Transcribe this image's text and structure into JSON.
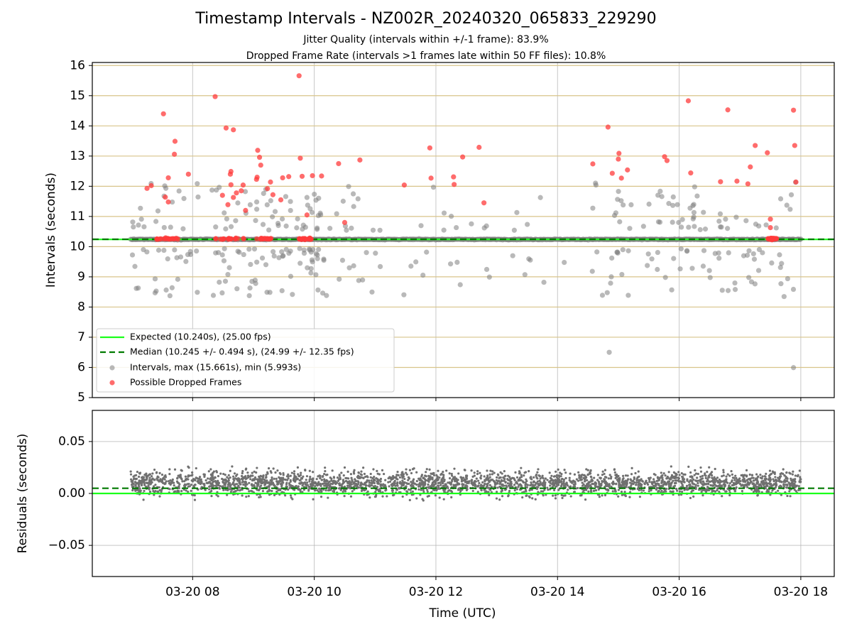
{
  "chart_data": [
    {
      "type": "scatter",
      "title": "Timestamp Intervals - NZ002R_20240320_065833_229290",
      "subtitle_lines": [
        "Jitter Quality (intervals within +/-1 frame): 83.9%",
        "Dropped Frame Rate (intervals >1 frames late within 50 FF files): 10.8%"
      ],
      "xlabel": "",
      "ylabel": "Intervals (seconds)",
      "x_range_hours": [
        6.35,
        18.55
      ],
      "ylim": [
        5,
        16.1
      ],
      "y_ticks": [
        5,
        6,
        7,
        8,
        9,
        10,
        11,
        12,
        13,
        14,
        15,
        16
      ],
      "x_ticks": [
        "03-20 08",
        "03-20 10",
        "03-20 12",
        "03-20 14",
        "03-20 16",
        "03-20 18"
      ],
      "x_tick_hours": [
        8,
        10,
        12,
        14,
        16,
        18
      ],
      "x_start_hour": 6.98,
      "x_end_hour": 18.0,
      "grid": "vertical gridlines at x ticks; horizontal tan lines at integer seconds",
      "legend_placement": "lower-left",
      "series": [
        {
          "name": "Expected (10.240s), (25.00 fps)",
          "kind": "hline",
          "value": 10.24,
          "color": "#1aff1a"
        },
        {
          "name": "Median (10.245 +/- 0.494 s), (24.99 +/- 12.35 fps)",
          "kind": "hline-dashed",
          "value": 10.245,
          "color": "#007a00"
        },
        {
          "name": "Intervals, max (15.661s), min (5.993s)",
          "kind": "scatter",
          "color": "#808080",
          "max": 15.661,
          "min": 5.993,
          "base": 10.24
        },
        {
          "name": "Possible Dropped Frames",
          "kind": "scatter",
          "color": "#ff3b3b",
          "points": [
            [
              7.25,
              11.93
            ],
            [
              7.32,
              12.02
            ],
            [
              7.52,
              14.4
            ],
            [
              7.55,
              11.64
            ],
            [
              7.6,
              11.48
            ],
            [
              7.6,
              12.28
            ],
            [
              7.7,
              13.06
            ],
            [
              7.71,
              13.49
            ],
            [
              7.93,
              12.4
            ],
            [
              8.37,
              14.97
            ],
            [
              8.49,
              11.7
            ],
            [
              8.55,
              13.93
            ],
            [
              8.58,
              11.39
            ],
            [
              8.62,
              12.4
            ],
            [
              8.63,
              12.49
            ],
            [
              8.63,
              12.05
            ],
            [
              8.67,
              11.63
            ],
            [
              8.67,
              13.87
            ],
            [
              8.72,
              11.78
            ],
            [
              8.8,
              11.85
            ],
            [
              8.83,
              12.04
            ],
            [
              8.87,
              11.2
            ],
            [
              9.05,
              12.23
            ],
            [
              9.06,
              12.3
            ],
            [
              9.07,
              13.19
            ],
            [
              9.1,
              12.96
            ],
            [
              9.12,
              12.7
            ],
            [
              9.23,
              11.92
            ],
            [
              9.28,
              12.14
            ],
            [
              9.32,
              11.72
            ],
            [
              9.45,
              11.55
            ],
            [
              9.48,
              12.28
            ],
            [
              9.58,
              12.32
            ],
            [
              9.75,
              15.66
            ],
            [
              9.77,
              12.93
            ],
            [
              9.8,
              12.33
            ],
            [
              9.88,
              11.05
            ],
            [
              9.97,
              12.35
            ],
            [
              10.12,
              12.34
            ],
            [
              10.4,
              12.75
            ],
            [
              10.5,
              10.8
            ],
            [
              10.75,
              12.87
            ],
            [
              11.48,
              12.04
            ],
            [
              11.9,
              13.27
            ],
            [
              11.92,
              12.27
            ],
            [
              12.29,
              12.31
            ],
            [
              12.3,
              12.06
            ],
            [
              12.44,
              12.97
            ],
            [
              12.71,
              13.29
            ],
            [
              12.79,
              11.45
            ],
            [
              14.58,
              12.74
            ],
            [
              14.83,
              13.96
            ],
            [
              14.9,
              12.43
            ],
            [
              15.0,
              12.9
            ],
            [
              15.01,
              13.09
            ],
            [
              15.05,
              12.27
            ],
            [
              15.15,
              12.54
            ],
            [
              15.76,
              12.98
            ],
            [
              15.8,
              12.85
            ],
            [
              16.15,
              14.83
            ],
            [
              16.19,
              12.44
            ],
            [
              16.68,
              12.15
            ],
            [
              16.8,
              14.53
            ],
            [
              16.95,
              12.17
            ],
            [
              17.13,
              12.08
            ],
            [
              17.17,
              12.64
            ],
            [
              17.25,
              13.35
            ],
            [
              17.45,
              13.11
            ],
            [
              17.5,
              10.91
            ],
            [
              17.5,
              10.63
            ],
            [
              17.88,
              14.52
            ],
            [
              17.9,
              13.35
            ],
            [
              17.92,
              12.14
            ]
          ],
          "clusters_at_10_26": [
            [
              7.4,
              7.8
            ],
            [
              8.35,
              8.85
            ],
            [
              9.05,
              9.3
            ],
            [
              9.75,
              9.95
            ],
            [
              17.45,
              17.6
            ]
          ]
        }
      ]
    },
    {
      "type": "scatter",
      "xlabel": "Time (UTC)",
      "ylabel": "Residuals (seconds)",
      "ylim": [
        -0.08,
        0.08
      ],
      "y_ticks": [
        0.05,
        0.0,
        -0.05
      ],
      "y_tick_labels": [
        "0.05",
        "0.00",
        "−0.05"
      ],
      "x_ticks": [
        "03-20 08",
        "03-20 10",
        "03-20 12",
        "03-20 14",
        "03-20 16",
        "03-20 18"
      ],
      "grid": "both",
      "series": [
        {
          "kind": "hline",
          "value": 0.0,
          "color": "#1aff1a"
        },
        {
          "kind": "hline-dashed",
          "value": 0.005,
          "color": "#007a00"
        },
        {
          "kind": "scatter",
          "color": "#707070",
          "spread": 0.025,
          "count": 3000
        }
      ]
    }
  ]
}
